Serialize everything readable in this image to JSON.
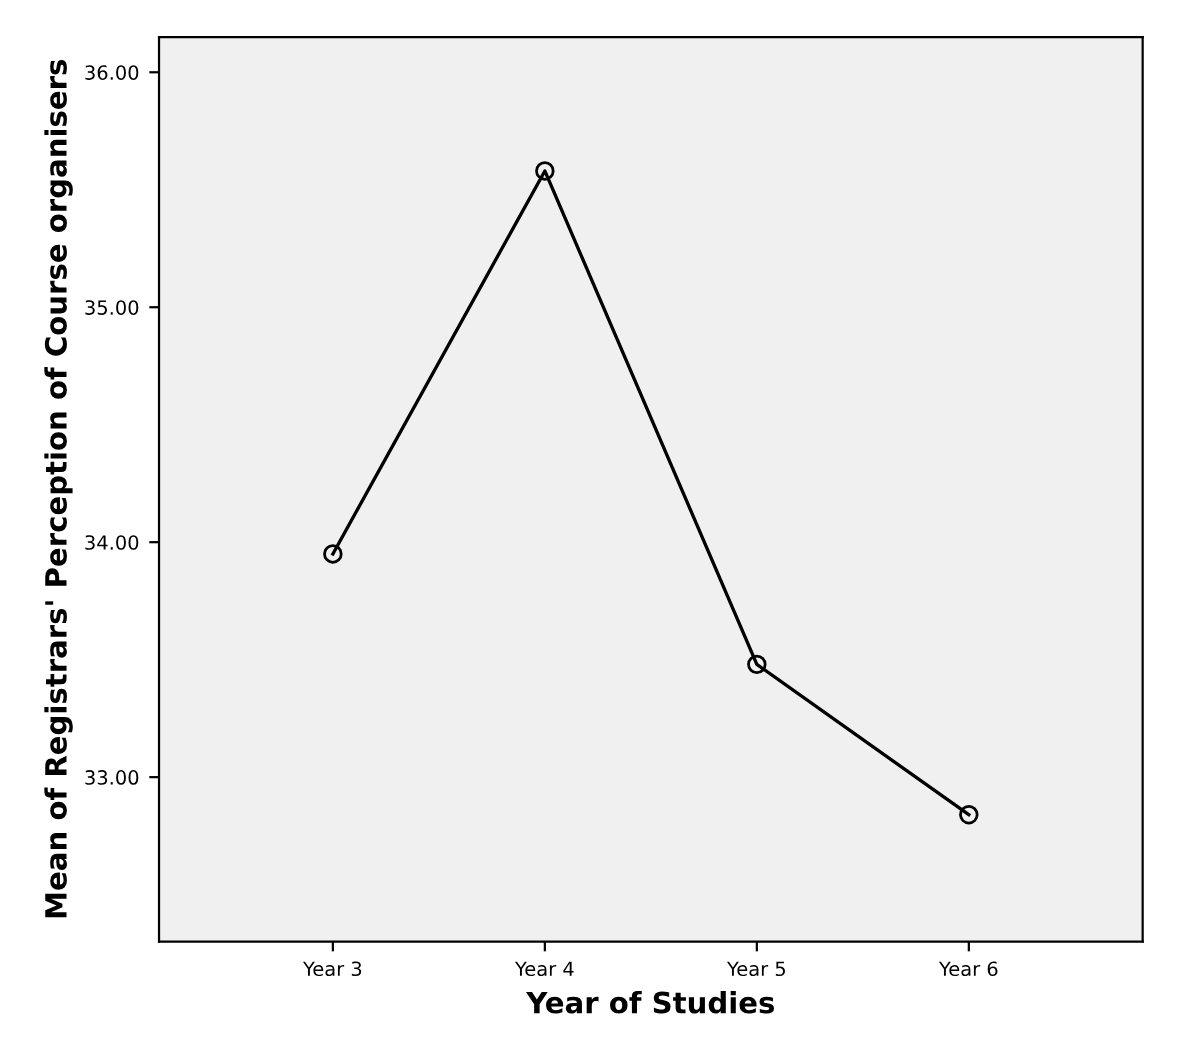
{
  "chart_data": {
    "type": "line",
    "xlabel": "Year of Studies",
    "ylabel": "Mean of Registrars' Perception of Course organisers",
    "categories": [
      "Year 3",
      "Year 4",
      "Year 5",
      "Year 6"
    ],
    "series": [
      {
        "color": "#000000",
        "values": [
          33.95,
          35.58,
          33.48,
          32.84
        ]
      }
    ],
    "ylim": [
      32.3,
      36.15
    ],
    "yticks": [
      {
        "value": 33,
        "label": "33.00"
      },
      {
        "value": 34,
        "label": "34.00"
      },
      {
        "value": 35,
        "label": "35.00"
      },
      {
        "value": 36,
        "label": "36.00"
      }
    ],
    "marker": "circle",
    "line_style": "solid",
    "grid": false,
    "legend": false
  }
}
